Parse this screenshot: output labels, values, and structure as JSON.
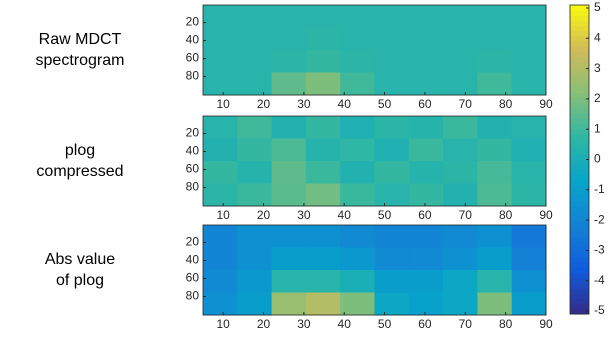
{
  "chart_data": [
    {
      "type": "heatmap",
      "label": [
        "Raw MDCT",
        "spectrogram"
      ],
      "xlim": [
        5,
        90
      ],
      "ylim": [
        0.5,
        100.5
      ],
      "yreverse": true,
      "xticks": [
        10,
        20,
        30,
        40,
        50,
        60,
        70,
        80,
        90
      ],
      "yticks": [
        20,
        40,
        60,
        80
      ],
      "colormap": "parula",
      "clim": [
        -5,
        5
      ],
      "values": [
        [
          0.5,
          0.5,
          0.5,
          0.5,
          0.5,
          0.5,
          0.5,
          0.5,
          0.5,
          0.5
        ],
        [
          0.5,
          0.5,
          0.5,
          0.6,
          0.5,
          0.5,
          0.5,
          0.5,
          0.5,
          0.5
        ],
        [
          0.5,
          0.5,
          0.6,
          0.8,
          0.6,
          0.5,
          0.5,
          0.5,
          0.6,
          0.5
        ],
        [
          0.5,
          0.5,
          1.5,
          2,
          1,
          0.5,
          0.5,
          0.5,
          1,
          0.5
        ]
      ]
    },
    {
      "type": "heatmap",
      "label": [
        "plog",
        "compressed"
      ],
      "xlim": [
        5,
        90
      ],
      "ylim": [
        0.5,
        100.5
      ],
      "yreverse": true,
      "xticks": [
        10,
        20,
        30,
        40,
        50,
        60,
        70,
        80,
        90
      ],
      "yticks": [
        20,
        40,
        60,
        80
      ],
      "colormap": "parula",
      "clim": [
        -5,
        5
      ],
      "values": [
        [
          0.5,
          1,
          0.3,
          0.8,
          0.2,
          0.6,
          0.4,
          0.9,
          0.3,
          0.5
        ],
        [
          0.3,
          0.8,
          1.2,
          0.4,
          0.7,
          0.2,
          0.9,
          0.5,
          0.8,
          0.2
        ],
        [
          0.8,
          0.4,
          1.5,
          0.9,
          0.3,
          0.8,
          0.4,
          0.6,
          1.1,
          0.5
        ],
        [
          0.6,
          0.9,
          1.4,
          1.8,
          0.9,
          0.5,
          0.8,
          0.3,
          1.2,
          0.6
        ]
      ]
    },
    {
      "type": "heatmap",
      "label": [
        "Abs value",
        "of plog"
      ],
      "xlim": [
        5,
        90
      ],
      "ylim": [
        0.5,
        100.5
      ],
      "yreverse": true,
      "xticks": [
        10,
        20,
        30,
        40,
        50,
        60,
        70,
        80,
        90
      ],
      "yticks": [
        20,
        40,
        60,
        80
      ],
      "colormap": "parula",
      "clim": [
        -5,
        5
      ],
      "values": [
        [
          -2,
          -1.5,
          -1.5,
          -1.5,
          -1.8,
          -2,
          -2,
          -1.8,
          -1.5,
          -2.5
        ],
        [
          -2,
          -1.5,
          -1,
          -1,
          -1.2,
          -1.8,
          -1.8,
          -1.5,
          -1,
          -2.2
        ],
        [
          -1.8,
          -1.2,
          0.5,
          0.5,
          0,
          -1,
          -1,
          -0.5,
          0.5,
          -1.5
        ],
        [
          -1.5,
          -1,
          2.5,
          3,
          2,
          -0.5,
          -0.8,
          -0.5,
          2,
          -1
        ]
      ]
    },
    {
      "type": "colorbar",
      "colormap": "parula",
      "clim": [
        -5,
        5
      ],
      "ticks": [
        -5,
        -4,
        -3,
        -2,
        -1,
        0,
        1,
        2,
        3,
        4,
        5
      ]
    }
  ]
}
